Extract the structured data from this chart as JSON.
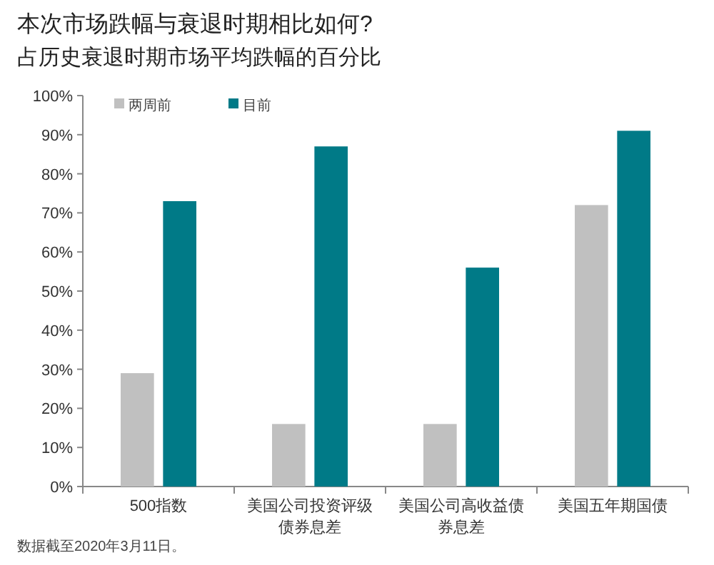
{
  "chart_data": {
    "type": "bar",
    "title": "本次市场跌幅与衰退时期相比如何?",
    "subtitle": "占历史衰退时期市场平均跌幅的百分比",
    "categories": [
      "500指数",
      "美国公司投资评级债券息差",
      "美国公司高收益债券息差",
      "美国五年期国债"
    ],
    "series": [
      {
        "name": "两周前",
        "color": "#c0c0c0",
        "values": [
          29,
          16,
          16,
          72
        ]
      },
      {
        "name": "目前",
        "color": "#007a87",
        "values": [
          73,
          87,
          56,
          91
        ]
      }
    ],
    "ylim": [
      0,
      100
    ],
    "yticks": [
      {
        "value": 0,
        "label": "0%"
      },
      {
        "value": 10,
        "label": "10%"
      },
      {
        "value": 20,
        "label": "20%"
      },
      {
        "value": 30,
        "label": "30%"
      },
      {
        "value": 40,
        "label": "40%"
      },
      {
        "value": 50,
        "label": "50%"
      },
      {
        "value": 60,
        "label": "60%"
      },
      {
        "value": 70,
        "label": "70%"
      },
      {
        "value": 80,
        "label": "80%"
      },
      {
        "value": 90,
        "label": "90%"
      },
      {
        "value": 100,
        "label": "100%"
      }
    ],
    "grid": false,
    "legend": "top left",
    "annotations": [
      "数据截至2020年3月11日。"
    ]
  }
}
